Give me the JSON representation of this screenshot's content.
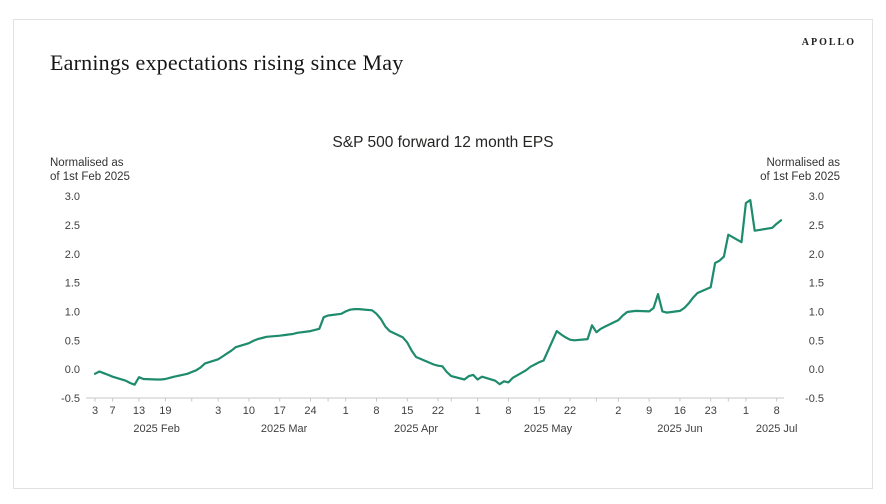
{
  "brand": "APOLLO",
  "header": {
    "title": "Earnings expectations rising since May"
  },
  "chart_data": {
    "type": "line",
    "title": "S&P 500 forward 12 month EPS",
    "left_axis_note": [
      "Normalised as",
      "of 1st Feb 2025"
    ],
    "right_axis_note": [
      "Normalised as",
      "of 1st Feb 2025"
    ],
    "ylim": [
      -0.5,
      3.0
    ],
    "grid": false,
    "legend": "none",
    "line_color": "#1d8b6c",
    "axis_color": "#c9c7c5",
    "y_ticks": [
      {
        "label": "3.0",
        "value": 3.0
      },
      {
        "label": "2.5",
        "value": 2.5
      },
      {
        "label": "2.0",
        "value": 2.0
      },
      {
        "label": "1.5",
        "value": 1.5
      },
      {
        "label": "1.0",
        "value": 1.0
      },
      {
        "label": "0.5",
        "value": 0.5
      },
      {
        "label": "0.0",
        "value": 0.0
      },
      {
        "label": "-0.5",
        "value": -0.5
      }
    ],
    "x_ticks": [
      {
        "label": "3",
        "date": "2025-02-03"
      },
      {
        "label": "7",
        "date": "2025-02-07"
      },
      {
        "label": "13",
        "date": "2025-02-13"
      },
      {
        "label": "19",
        "date": "2025-02-19"
      },
      {
        "label": "",
        "date": "2025-02-25"
      },
      {
        "label": "3",
        "date": "2025-03-03"
      },
      {
        "label": "10",
        "date": "2025-03-10"
      },
      {
        "label": "17",
        "date": "2025-03-17"
      },
      {
        "label": "24",
        "date": "2025-03-24"
      },
      {
        "label": "",
        "date": "2025-03-28"
      },
      {
        "label": "1",
        "date": "2025-04-01"
      },
      {
        "label": "8",
        "date": "2025-04-08"
      },
      {
        "label": "15",
        "date": "2025-04-15"
      },
      {
        "label": "22",
        "date": "2025-04-22"
      },
      {
        "label": "",
        "date": "2025-04-25"
      },
      {
        "label": "1",
        "date": "2025-05-01"
      },
      {
        "label": "8",
        "date": "2025-05-08"
      },
      {
        "label": "15",
        "date": "2025-05-15"
      },
      {
        "label": "22",
        "date": "2025-05-22"
      },
      {
        "label": "",
        "date": "2025-05-28"
      },
      {
        "label": "2",
        "date": "2025-06-02"
      },
      {
        "label": "9",
        "date": "2025-06-09"
      },
      {
        "label": "16",
        "date": "2025-06-16"
      },
      {
        "label": "23",
        "date": "2025-06-23"
      },
      {
        "label": "",
        "date": "2025-06-27"
      },
      {
        "label": "1",
        "date": "2025-07-01"
      },
      {
        "label": "8",
        "date": "2025-07-08"
      }
    ],
    "month_labels": [
      {
        "label": "2025 Feb",
        "date": "2025-02-17"
      },
      {
        "label": "2025 Mar",
        "date": "2025-03-18"
      },
      {
        "label": "2025 Apr",
        "date": "2025-04-17"
      },
      {
        "label": "2025 May",
        "date": "2025-05-17"
      },
      {
        "label": "2025 Jun",
        "date": "2025-06-16"
      },
      {
        "label": "2025 Jul",
        "date": "2025-07-08"
      }
    ],
    "series": [
      {
        "name": "S&P 500 forward 12 month EPS, normalised as of 1st Feb 2025",
        "points": [
          [
            "2025-02-03",
            -0.08
          ],
          [
            "2025-02-04",
            -0.04
          ],
          [
            "2025-02-05",
            -0.07
          ],
          [
            "2025-02-06",
            -0.1
          ],
          [
            "2025-02-07",
            -0.13
          ],
          [
            "2025-02-10",
            -0.2
          ],
          [
            "2025-02-11",
            -0.24
          ],
          [
            "2025-02-12",
            -0.27
          ],
          [
            "2025-02-13",
            -0.14
          ],
          [
            "2025-02-14",
            -0.17
          ],
          [
            "2025-02-17",
            -0.18
          ],
          [
            "2025-02-18",
            -0.18
          ],
          [
            "2025-02-19",
            -0.17
          ],
          [
            "2025-02-20",
            -0.15
          ],
          [
            "2025-02-21",
            -0.13
          ],
          [
            "2025-02-24",
            -0.08
          ],
          [
            "2025-02-25",
            -0.05
          ],
          [
            "2025-02-26",
            -0.02
          ],
          [
            "2025-02-27",
            0.03
          ],
          [
            "2025-02-28",
            0.1
          ],
          [
            "2025-03-03",
            0.17
          ],
          [
            "2025-03-04",
            0.22
          ],
          [
            "2025-03-05",
            0.27
          ],
          [
            "2025-03-06",
            0.32
          ],
          [
            "2025-03-07",
            0.38
          ],
          [
            "2025-03-10",
            0.45
          ],
          [
            "2025-03-11",
            0.49
          ],
          [
            "2025-03-12",
            0.52
          ],
          [
            "2025-03-13",
            0.54
          ],
          [
            "2025-03-14",
            0.56
          ],
          [
            "2025-03-17",
            0.58
          ],
          [
            "2025-03-18",
            0.59
          ],
          [
            "2025-03-19",
            0.6
          ],
          [
            "2025-03-20",
            0.61
          ],
          [
            "2025-03-21",
            0.63
          ],
          [
            "2025-03-24",
            0.66
          ],
          [
            "2025-03-25",
            0.68
          ],
          [
            "2025-03-26",
            0.7
          ],
          [
            "2025-03-27",
            0.9
          ],
          [
            "2025-03-28",
            0.93
          ],
          [
            "2025-03-31",
            0.96
          ],
          [
            "2025-04-01",
            1.0
          ],
          [
            "2025-04-02",
            1.03
          ],
          [
            "2025-04-03",
            1.04
          ],
          [
            "2025-04-04",
            1.04
          ],
          [
            "2025-04-07",
            1.02
          ],
          [
            "2025-04-08",
            0.96
          ],
          [
            "2025-04-09",
            0.87
          ],
          [
            "2025-04-10",
            0.74
          ],
          [
            "2025-04-11",
            0.66
          ],
          [
            "2025-04-14",
            0.55
          ],
          [
            "2025-04-15",
            0.46
          ],
          [
            "2025-04-16",
            0.32
          ],
          [
            "2025-04-17",
            0.21
          ],
          [
            "2025-04-21",
            0.08
          ],
          [
            "2025-04-22",
            0.06
          ],
          [
            "2025-04-23",
            0.05
          ],
          [
            "2025-04-24",
            -0.05
          ],
          [
            "2025-04-25",
            -0.12
          ],
          [
            "2025-04-28",
            -0.18
          ],
          [
            "2025-04-29",
            -0.12
          ],
          [
            "2025-04-30",
            -0.1
          ],
          [
            "2025-05-01",
            -0.18
          ],
          [
            "2025-05-02",
            -0.13
          ],
          [
            "2025-05-05",
            -0.2
          ],
          [
            "2025-05-06",
            -0.26
          ],
          [
            "2025-05-07",
            -0.21
          ],
          [
            "2025-05-08",
            -0.23
          ],
          [
            "2025-05-09",
            -0.15
          ],
          [
            "2025-05-12",
            -0.02
          ],
          [
            "2025-05-13",
            0.04
          ],
          [
            "2025-05-14",
            0.08
          ],
          [
            "2025-05-15",
            0.12
          ],
          [
            "2025-05-16",
            0.15
          ],
          [
            "2025-05-19",
            0.66
          ],
          [
            "2025-05-20",
            0.6
          ],
          [
            "2025-05-21",
            0.55
          ],
          [
            "2025-05-22",
            0.51
          ],
          [
            "2025-05-23",
            0.5
          ],
          [
            "2025-05-26",
            0.52
          ],
          [
            "2025-05-27",
            0.76
          ],
          [
            "2025-05-28",
            0.64
          ],
          [
            "2025-05-29",
            0.7
          ],
          [
            "2025-05-30",
            0.74
          ],
          [
            "2025-06-02",
            0.85
          ],
          [
            "2025-06-03",
            0.93
          ],
          [
            "2025-06-04",
            0.99
          ],
          [
            "2025-06-05",
            1.0
          ],
          [
            "2025-06-06",
            1.01
          ],
          [
            "2025-06-09",
            1.0
          ],
          [
            "2025-06-10",
            1.06
          ],
          [
            "2025-06-11",
            1.3
          ],
          [
            "2025-06-12",
            1.0
          ],
          [
            "2025-06-13",
            0.98
          ],
          [
            "2025-06-16",
            1.01
          ],
          [
            "2025-06-17",
            1.06
          ],
          [
            "2025-06-18",
            1.14
          ],
          [
            "2025-06-19",
            1.24
          ],
          [
            "2025-06-20",
            1.32
          ],
          [
            "2025-06-23",
            1.42
          ],
          [
            "2025-06-24",
            1.84
          ],
          [
            "2025-06-25",
            1.88
          ],
          [
            "2025-06-26",
            1.95
          ],
          [
            "2025-06-27",
            2.33
          ],
          [
            "2025-06-30",
            2.2
          ],
          [
            "2025-07-01",
            2.88
          ],
          [
            "2025-07-02",
            2.93
          ],
          [
            "2025-07-03",
            2.4
          ],
          [
            "2025-07-07",
            2.45
          ],
          [
            "2025-07-08",
            2.52
          ],
          [
            "2025-07-09",
            2.58
          ]
        ]
      }
    ]
  }
}
